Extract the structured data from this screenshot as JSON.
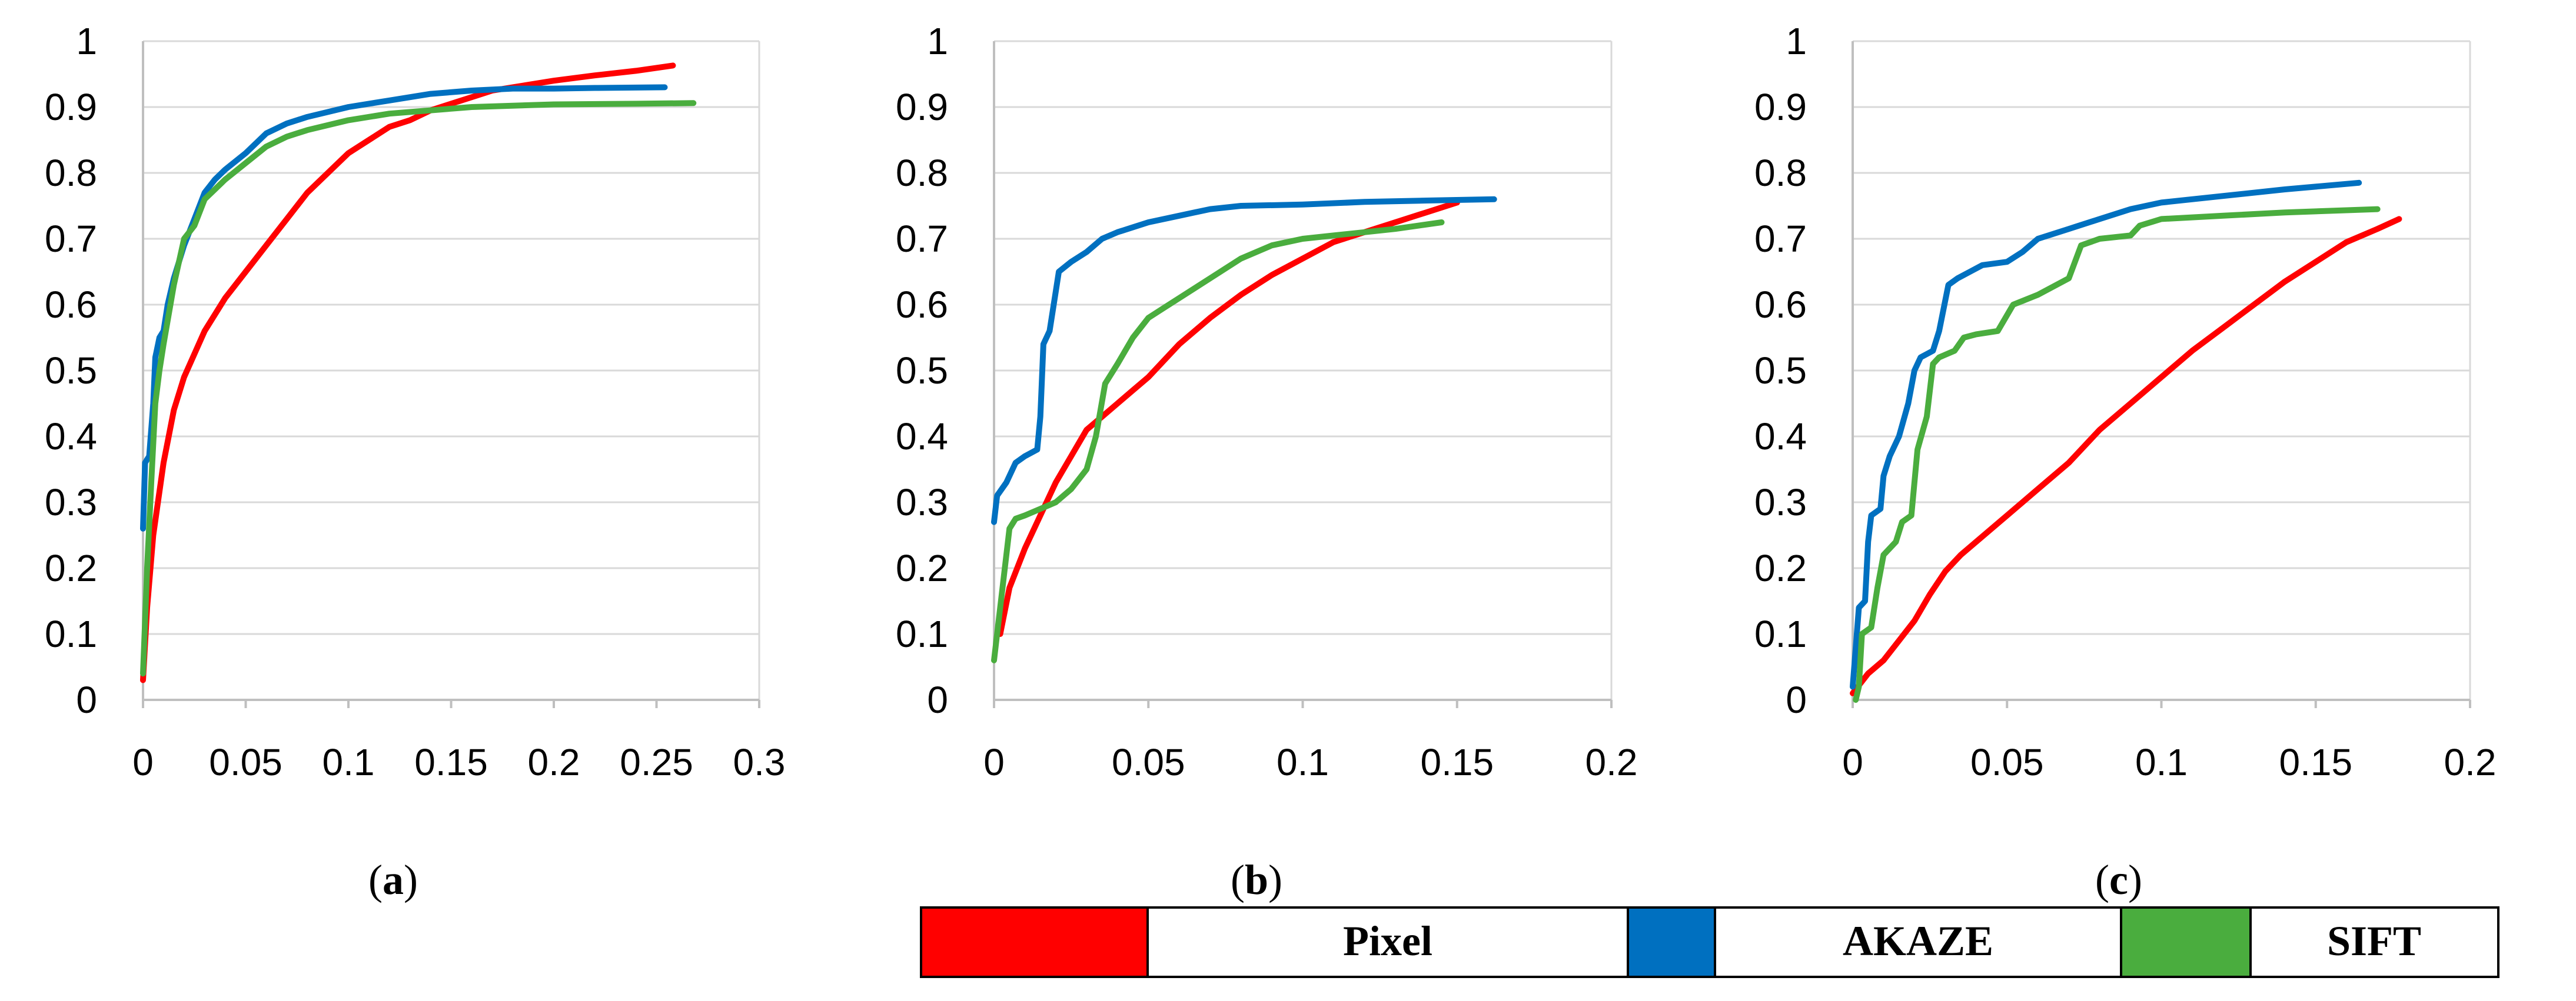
{
  "chart_data": [
    {
      "type": "line",
      "panel_label": "a",
      "xlim": [
        0,
        0.3
      ],
      "ylim": [
        0,
        1
      ],
      "xticks": [
        "0",
        "0.05",
        "0.1",
        "0.15",
        "0.2",
        "0.25",
        "0.3"
      ],
      "yticks": [
        "0",
        "0.1",
        "0.2",
        "0.3",
        "0.4",
        "0.5",
        "0.6",
        "0.7",
        "0.8",
        "0.9",
        "1"
      ],
      "grid": "horizontal",
      "series": [
        {
          "name": "Pixel",
          "color": "#ff0000",
          "points": [
            [
              0,
              0.03
            ],
            [
              0.002,
              0.14
            ],
            [
              0.005,
              0.25
            ],
            [
              0.01,
              0.36
            ],
            [
              0.015,
              0.44
            ],
            [
              0.02,
              0.49
            ],
            [
              0.03,
              0.56
            ],
            [
              0.04,
              0.61
            ],
            [
              0.05,
              0.65
            ],
            [
              0.06,
              0.69
            ],
            [
              0.07,
              0.73
            ],
            [
              0.08,
              0.77
            ],
            [
              0.09,
              0.8
            ],
            [
              0.1,
              0.83
            ],
            [
              0.11,
              0.85
            ],
            [
              0.12,
              0.87
            ],
            [
              0.13,
              0.88
            ],
            [
              0.14,
              0.895
            ],
            [
              0.15,
              0.905
            ],
            [
              0.16,
              0.915
            ],
            [
              0.17,
              0.925
            ],
            [
              0.18,
              0.93
            ],
            [
              0.2,
              0.94
            ],
            [
              0.22,
              0.948
            ],
            [
              0.24,
              0.955
            ],
            [
              0.258,
              0.963
            ]
          ]
        },
        {
          "name": "AKAZE",
          "color": "#0070c0",
          "points": [
            [
              0,
              0.26
            ],
            [
              0.001,
              0.36
            ],
            [
              0.003,
              0.37
            ],
            [
              0.005,
              0.45
            ],
            [
              0.006,
              0.52
            ],
            [
              0.008,
              0.55
            ],
            [
              0.01,
              0.56
            ],
            [
              0.012,
              0.6
            ],
            [
              0.015,
              0.64
            ],
            [
              0.02,
              0.69
            ],
            [
              0.025,
              0.73
            ],
            [
              0.03,
              0.77
            ],
            [
              0.035,
              0.79
            ],
            [
              0.04,
              0.805
            ],
            [
              0.05,
              0.83
            ],
            [
              0.06,
              0.86
            ],
            [
              0.07,
              0.875
            ],
            [
              0.08,
              0.885
            ],
            [
              0.1,
              0.9
            ],
            [
              0.12,
              0.91
            ],
            [
              0.14,
              0.92
            ],
            [
              0.16,
              0.925
            ],
            [
              0.18,
              0.928
            ],
            [
              0.2,
              0.928
            ],
            [
              0.22,
              0.929
            ],
            [
              0.254,
              0.93
            ]
          ]
        },
        {
          "name": "SIFT",
          "color": "#4aad3e",
          "points": [
            [
              0,
              0.04
            ],
            [
              0.002,
              0.2
            ],
            [
              0.004,
              0.33
            ],
            [
              0.006,
              0.45
            ],
            [
              0.008,
              0.5
            ],
            [
              0.01,
              0.54
            ],
            [
              0.015,
              0.63
            ],
            [
              0.02,
              0.7
            ],
            [
              0.025,
              0.72
            ],
            [
              0.03,
              0.76
            ],
            [
              0.04,
              0.79
            ],
            [
              0.05,
              0.815
            ],
            [
              0.06,
              0.84
            ],
            [
              0.07,
              0.855
            ],
            [
              0.08,
              0.865
            ],
            [
              0.1,
              0.88
            ],
            [
              0.12,
              0.89
            ],
            [
              0.14,
              0.895
            ],
            [
              0.16,
              0.9
            ],
            [
              0.2,
              0.904
            ],
            [
              0.24,
              0.905
            ],
            [
              0.268,
              0.906
            ]
          ]
        }
      ]
    },
    {
      "type": "line",
      "panel_label": "b",
      "xlim": [
        0,
        0.2
      ],
      "ylim": [
        0,
        1
      ],
      "xticks": [
        "0",
        "0.05",
        "0.1",
        "0.15",
        "0.2"
      ],
      "yticks": [
        "0",
        "0.1",
        "0.2",
        "0.3",
        "0.4",
        "0.5",
        "0.6",
        "0.7",
        "0.8",
        "0.9",
        "1"
      ],
      "grid": "horizontal",
      "series": [
        {
          "name": "Pixel",
          "color": "#ff0000",
          "points": [
            [
              0.002,
              0.1
            ],
            [
              0.005,
              0.17
            ],
            [
              0.01,
              0.23
            ],
            [
              0.015,
              0.28
            ],
            [
              0.02,
              0.33
            ],
            [
              0.025,
              0.37
            ],
            [
              0.03,
              0.41
            ],
            [
              0.035,
              0.43
            ],
            [
              0.04,
              0.45
            ],
            [
              0.045,
              0.47
            ],
            [
              0.05,
              0.49
            ],
            [
              0.06,
              0.54
            ],
            [
              0.07,
              0.58
            ],
            [
              0.08,
              0.615
            ],
            [
              0.09,
              0.645
            ],
            [
              0.1,
              0.67
            ],
            [
              0.11,
              0.695
            ],
            [
              0.12,
              0.71
            ],
            [
              0.13,
              0.725
            ],
            [
              0.14,
              0.74
            ],
            [
              0.15,
              0.755
            ]
          ]
        },
        {
          "name": "AKAZE",
          "color": "#0070c0",
          "points": [
            [
              0,
              0.27
            ],
            [
              0.001,
              0.31
            ],
            [
              0.004,
              0.33
            ],
            [
              0.007,
              0.36
            ],
            [
              0.01,
              0.37
            ],
            [
              0.014,
              0.38
            ],
            [
              0.015,
              0.43
            ],
            [
              0.016,
              0.54
            ],
            [
              0.018,
              0.56
            ],
            [
              0.02,
              0.62
            ],
            [
              0.021,
              0.65
            ],
            [
              0.025,
              0.665
            ],
            [
              0.03,
              0.68
            ],
            [
              0.035,
              0.7
            ],
            [
              0.04,
              0.71
            ],
            [
              0.05,
              0.725
            ],
            [
              0.06,
              0.735
            ],
            [
              0.07,
              0.745
            ],
            [
              0.08,
              0.75
            ],
            [
              0.1,
              0.752
            ],
            [
              0.12,
              0.756
            ],
            [
              0.14,
              0.758
            ],
            [
              0.162,
              0.76
            ]
          ]
        },
        {
          "name": "SIFT",
          "color": "#4aad3e",
          "points": [
            [
              0,
              0.06
            ],
            [
              0.001,
              0.1
            ],
            [
              0.003,
              0.18
            ],
            [
              0.005,
              0.26
            ],
            [
              0.007,
              0.275
            ],
            [
              0.01,
              0.28
            ],
            [
              0.015,
              0.29
            ],
            [
              0.02,
              0.3
            ],
            [
              0.025,
              0.32
            ],
            [
              0.03,
              0.35
            ],
            [
              0.033,
              0.4
            ],
            [
              0.036,
              0.48
            ],
            [
              0.04,
              0.51
            ],
            [
              0.045,
              0.55
            ],
            [
              0.05,
              0.58
            ],
            [
              0.055,
              0.595
            ],
            [
              0.06,
              0.61
            ],
            [
              0.07,
              0.64
            ],
            [
              0.08,
              0.67
            ],
            [
              0.09,
              0.69
            ],
            [
              0.1,
              0.7
            ],
            [
              0.11,
              0.705
            ],
            [
              0.12,
              0.71
            ],
            [
              0.13,
              0.715
            ],
            [
              0.145,
              0.725
            ]
          ]
        }
      ]
    },
    {
      "type": "line",
      "panel_label": "c",
      "xlim": [
        0,
        0.2
      ],
      "ylim": [
        0,
        1
      ],
      "xticks": [
        "0",
        "0.05",
        "0.1",
        "0.15",
        "0.2"
      ],
      "yticks": [
        "0",
        "0.1",
        "0.2",
        "0.3",
        "0.4",
        "0.5",
        "0.6",
        "0.7",
        "0.8",
        "0.9",
        "1"
      ],
      "grid": "horizontal",
      "series": [
        {
          "name": "Pixel",
          "color": "#ff0000",
          "points": [
            [
              0,
              0.01
            ],
            [
              0.005,
              0.04
            ],
            [
              0.01,
              0.06
            ],
            [
              0.015,
              0.09
            ],
            [
              0.02,
              0.12
            ],
            [
              0.025,
              0.16
            ],
            [
              0.03,
              0.195
            ],
            [
              0.035,
              0.22
            ],
            [
              0.04,
              0.24
            ],
            [
              0.05,
              0.28
            ],
            [
              0.06,
              0.32
            ],
            [
              0.07,
              0.36
            ],
            [
              0.08,
              0.41
            ],
            [
              0.09,
              0.45
            ],
            [
              0.1,
              0.49
            ],
            [
              0.11,
              0.53
            ],
            [
              0.12,
              0.565
            ],
            [
              0.13,
              0.6
            ],
            [
              0.14,
              0.635
            ],
            [
              0.15,
              0.665
            ],
            [
              0.16,
              0.695
            ],
            [
              0.17,
              0.715
            ],
            [
              0.177,
              0.73
            ]
          ]
        },
        {
          "name": "AKAZE",
          "color": "#0070c0",
          "points": [
            [
              0,
              0.02
            ],
            [
              0.002,
              0.14
            ],
            [
              0.004,
              0.15
            ],
            [
              0.005,
              0.24
            ],
            [
              0.006,
              0.28
            ],
            [
              0.009,
              0.29
            ],
            [
              0.01,
              0.34
            ],
            [
              0.012,
              0.37
            ],
            [
              0.015,
              0.4
            ],
            [
              0.018,
              0.45
            ],
            [
              0.02,
              0.5
            ],
            [
              0.022,
              0.52
            ],
            [
              0.026,
              0.53
            ],
            [
              0.028,
              0.56
            ],
            [
              0.031,
              0.63
            ],
            [
              0.034,
              0.64
            ],
            [
              0.038,
              0.65
            ],
            [
              0.042,
              0.66
            ],
            [
              0.05,
              0.665
            ],
            [
              0.055,
              0.68
            ],
            [
              0.06,
              0.7
            ],
            [
              0.07,
              0.715
            ],
            [
              0.08,
              0.73
            ],
            [
              0.09,
              0.745
            ],
            [
              0.1,
              0.755
            ],
            [
              0.12,
              0.765
            ],
            [
              0.14,
              0.775
            ],
            [
              0.164,
              0.785
            ]
          ]
        },
        {
          "name": "SIFT",
          "color": "#4aad3e",
          "points": [
            [
              0.001,
              0.0
            ],
            [
              0.002,
              0.02
            ],
            [
              0.003,
              0.1
            ],
            [
              0.006,
              0.11
            ],
            [
              0.008,
              0.17
            ],
            [
              0.01,
              0.22
            ],
            [
              0.014,
              0.24
            ],
            [
              0.016,
              0.27
            ],
            [
              0.019,
              0.28
            ],
            [
              0.021,
              0.38
            ],
            [
              0.024,
              0.43
            ],
            [
              0.026,
              0.51
            ],
            [
              0.028,
              0.52
            ],
            [
              0.033,
              0.53
            ],
            [
              0.036,
              0.55
            ],
            [
              0.04,
              0.555
            ],
            [
              0.047,
              0.56
            ],
            [
              0.052,
              0.6
            ],
            [
              0.06,
              0.615
            ],
            [
              0.07,
              0.64
            ],
            [
              0.074,
              0.69
            ],
            [
              0.08,
              0.7
            ],
            [
              0.09,
              0.705
            ],
            [
              0.093,
              0.72
            ],
            [
              0.1,
              0.73
            ],
            [
              0.12,
              0.735
            ],
            [
              0.14,
              0.74
            ],
            [
              0.17,
              0.745
            ]
          ]
        }
      ]
    }
  ],
  "legend": {
    "items": [
      {
        "label": "Pixel",
        "color": "#ff0000"
      },
      {
        "label": "AKAZE",
        "color": "#0070c0"
      },
      {
        "label": "SIFT",
        "color": "#4aad3e"
      }
    ]
  }
}
